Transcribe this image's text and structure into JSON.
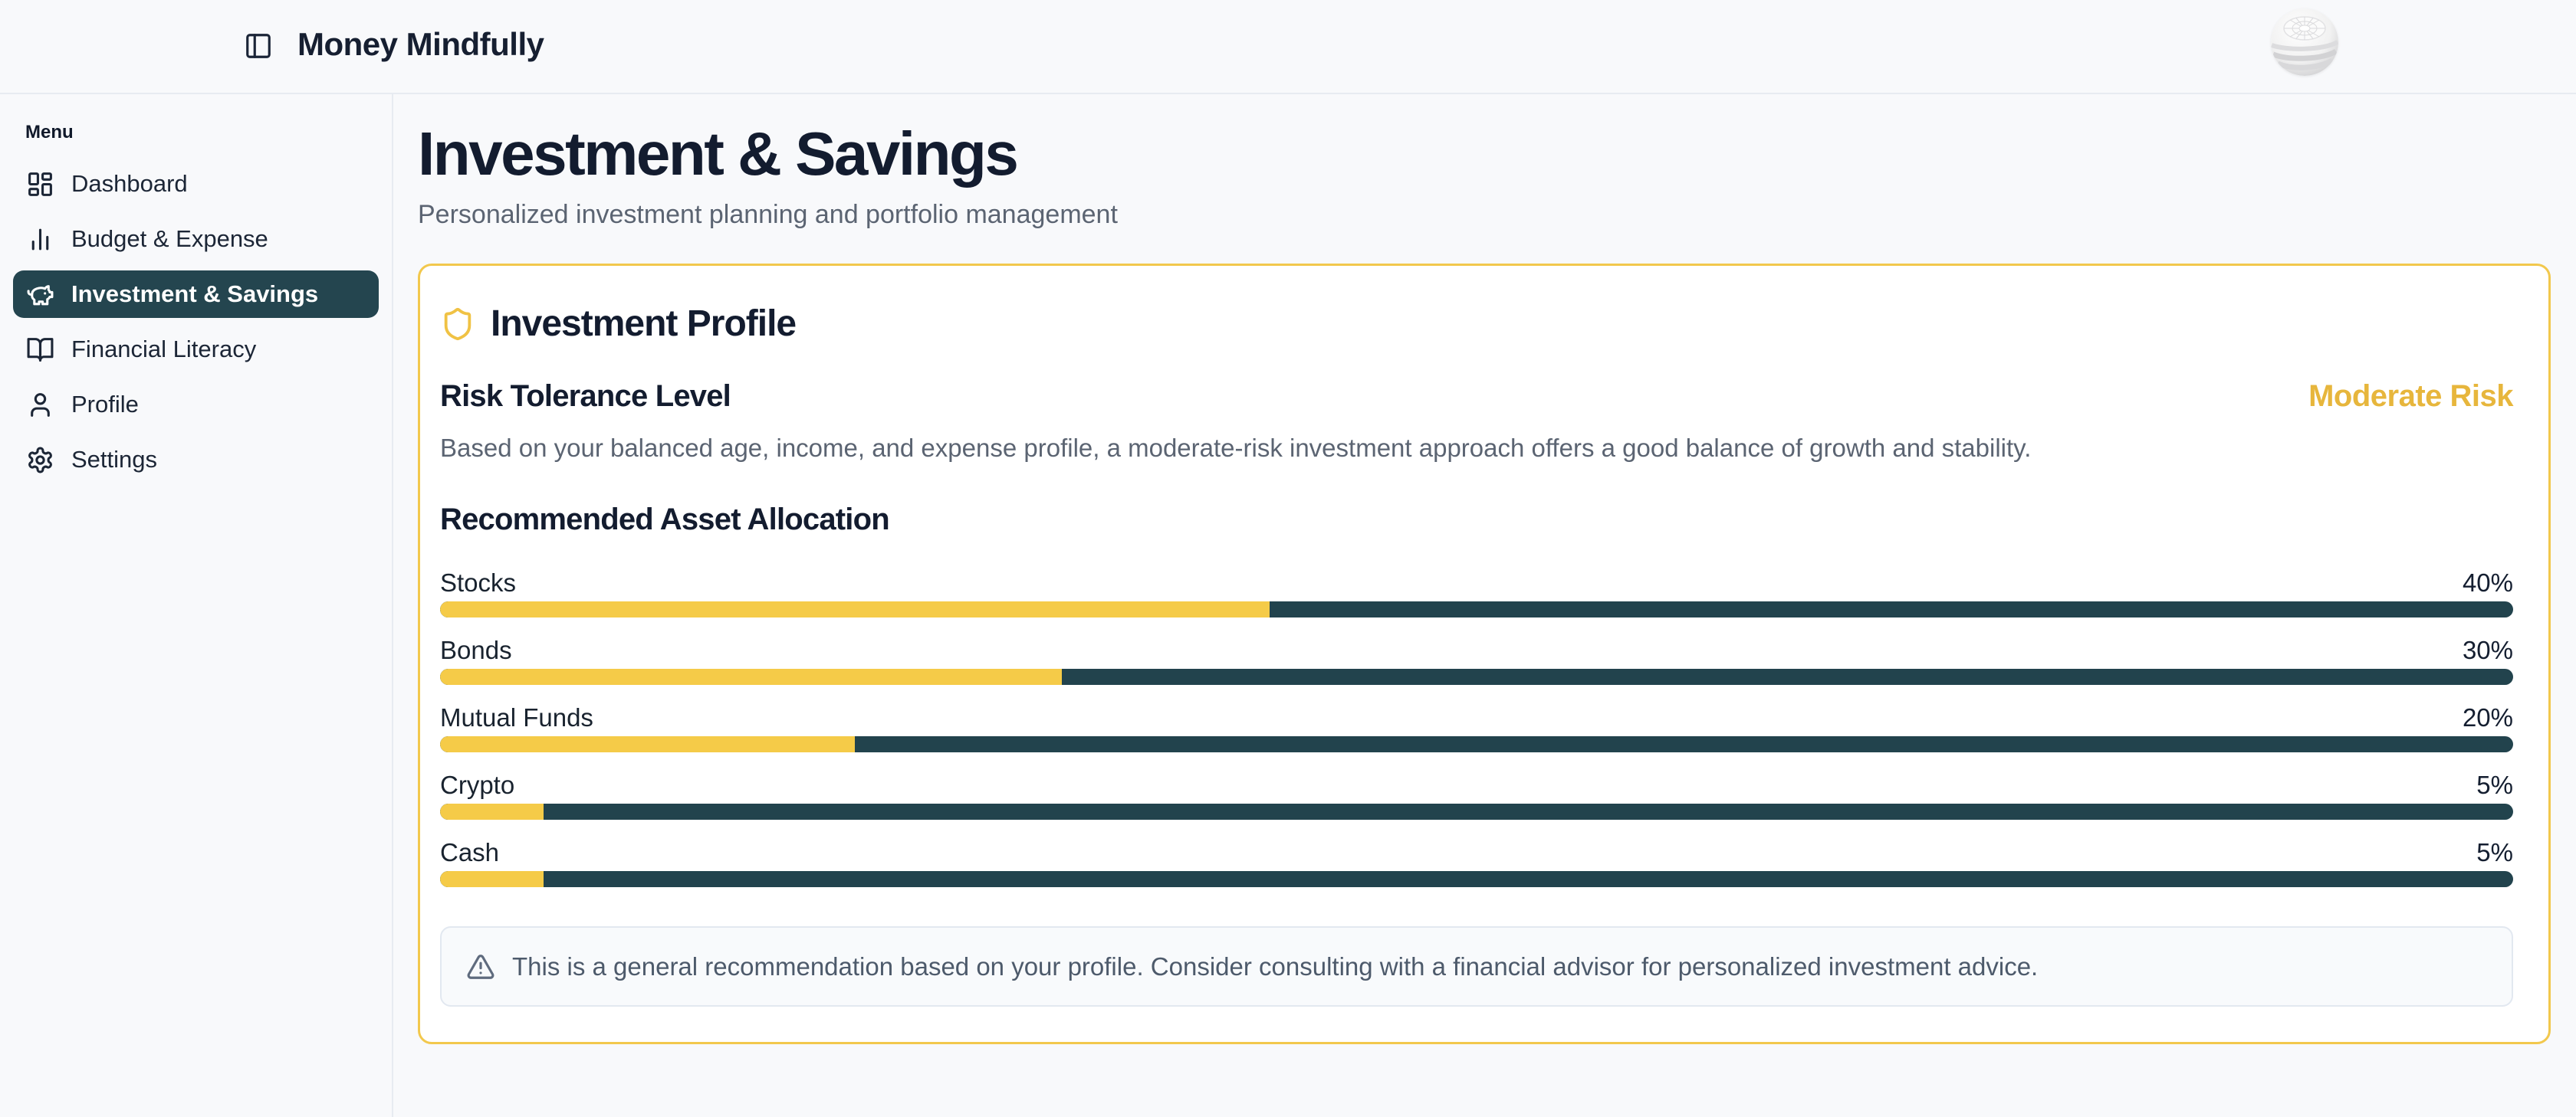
{
  "app": {
    "title": "Money Mindfully"
  },
  "sidebar": {
    "menu_label": "Menu",
    "items": [
      {
        "label": "Dashboard",
        "icon": "dashboard",
        "active": false
      },
      {
        "label": "Budget & Expense",
        "icon": "bar-chart",
        "active": false
      },
      {
        "label": "Investment & Savings",
        "icon": "piggy-bank",
        "active": true
      },
      {
        "label": "Financial Literacy",
        "icon": "book-open",
        "active": false
      },
      {
        "label": "Profile",
        "icon": "user",
        "active": false
      },
      {
        "label": "Settings",
        "icon": "settings",
        "active": false
      }
    ]
  },
  "page": {
    "title": "Investment & Savings",
    "subtitle": "Personalized investment planning and portfolio management"
  },
  "investment_profile": {
    "title": "Investment Profile",
    "risk_heading": "Risk Tolerance Level",
    "risk_level": "Moderate Risk",
    "risk_description": "Based on your balanced age, income, and expense profile, a moderate-risk investment approach offers a good balance of growth and stability.",
    "allocation_heading": "Recommended Asset Allocation",
    "note": "This is a general recommendation based on your profile. Consider consulting with a financial advisor for personalized investment advice."
  },
  "allocation": {
    "items": [
      {
        "label": "Stocks",
        "percent": 40,
        "percent_label": "40%"
      },
      {
        "label": "Bonds",
        "percent": 30,
        "percent_label": "30%"
      },
      {
        "label": "Mutual Funds",
        "percent": 20,
        "percent_label": "20%"
      },
      {
        "label": "Crypto",
        "percent": 5,
        "percent_label": "5%"
      },
      {
        "label": "Cash",
        "percent": 5,
        "percent_label": "5%"
      }
    ]
  },
  "chart_data": {
    "type": "bar",
    "orientation": "horizontal",
    "title": "Recommended Asset Allocation",
    "categories": [
      "Stocks",
      "Bonds",
      "Mutual Funds",
      "Crypto",
      "Cash"
    ],
    "values": [
      40,
      30,
      20,
      5,
      5
    ],
    "unit": "%",
    "xlim": [
      0,
      100
    ],
    "fill_color": "#f5cb48",
    "track_color": "#22434d"
  },
  "colors": {
    "accent_yellow": "#f5cb48",
    "card_border_yellow": "#f2c84d",
    "risk_level_yellow": "#e7b63c",
    "dark_teal": "#22434d",
    "sidebar_active_bg": "#24454f",
    "page_bg": "#f8f9fb",
    "divider": "#e7ebf1",
    "text_dark": "#131c2f",
    "text_muted": "#5b6472"
  }
}
